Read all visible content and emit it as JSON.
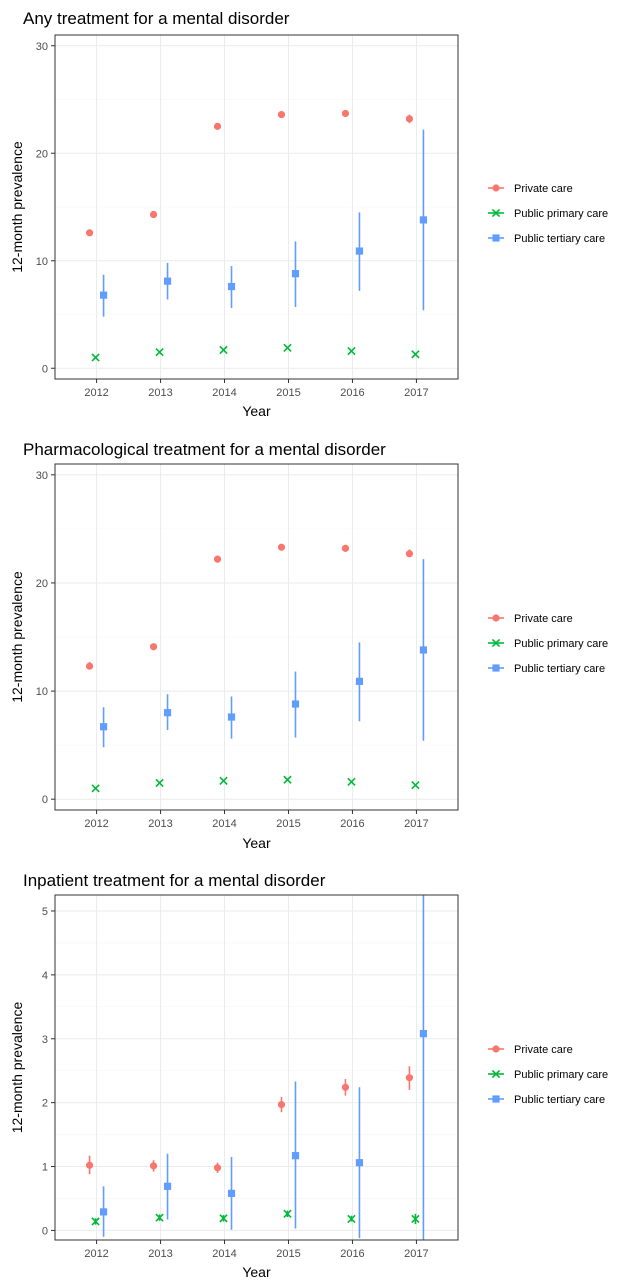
{
  "colors": {
    "private": "#F8766D",
    "primary": "#00BA38",
    "tertiary": "#619CFF"
  },
  "chart_data": [
    {
      "type": "scatter",
      "title": "Any treatment for a mental disorder",
      "xlabel": "Year",
      "ylabel": "12-month prevalence",
      "x": [
        "2012",
        "2013",
        "2014",
        "2015",
        "2016",
        "2017"
      ],
      "ylim": [
        -1,
        31
      ],
      "yticks": [
        0,
        10,
        20,
        30
      ],
      "grid": true,
      "legend_position": "right",
      "series": [
        {
          "name": "Private care",
          "key": "private",
          "marker": "circle",
          "values": [
            12.6,
            14.3,
            22.5,
            23.6,
            23.7,
            23.2
          ],
          "lower": [
            12.3,
            14.1,
            22.3,
            23.4,
            23.5,
            22.8
          ],
          "upper": [
            12.9,
            14.6,
            22.8,
            23.9,
            23.9,
            23.6
          ]
        },
        {
          "name": "Public primary care",
          "key": "primary",
          "marker": "x",
          "values": [
            1.0,
            1.5,
            1.7,
            1.9,
            1.6,
            1.3
          ],
          "lower": [
            0.9,
            1.4,
            1.6,
            1.8,
            1.5,
            1.2
          ],
          "upper": [
            1.1,
            1.6,
            1.8,
            2.0,
            1.7,
            1.4
          ]
        },
        {
          "name": "Public tertiary care",
          "key": "tertiary",
          "marker": "square",
          "values": [
            6.8,
            8.1,
            7.6,
            8.8,
            10.9,
            13.8
          ],
          "lower": [
            4.8,
            6.4,
            5.6,
            5.7,
            7.2,
            5.4
          ],
          "upper": [
            8.7,
            9.8,
            9.5,
            11.8,
            14.5,
            22.2
          ]
        }
      ]
    },
    {
      "type": "scatter",
      "title": "Pharmacological treatment for a mental disorder",
      "xlabel": "Year",
      "ylabel": "12-month prevalence",
      "x": [
        "2012",
        "2013",
        "2014",
        "2015",
        "2016",
        "2017"
      ],
      "ylim": [
        -1,
        31
      ],
      "yticks": [
        0,
        10,
        20,
        30
      ],
      "grid": true,
      "legend_position": "right",
      "series": [
        {
          "name": "Private care",
          "key": "private",
          "marker": "circle",
          "values": [
            12.3,
            14.1,
            22.2,
            23.3,
            23.2,
            22.7
          ],
          "lower": [
            12.0,
            13.9,
            22.0,
            23.1,
            23.0,
            22.4
          ],
          "upper": [
            12.7,
            14.3,
            22.5,
            23.5,
            23.5,
            23.1
          ]
        },
        {
          "name": "Public primary care",
          "key": "primary",
          "marker": "x",
          "values": [
            1.0,
            1.5,
            1.7,
            1.8,
            1.6,
            1.3
          ],
          "lower": [
            0.9,
            1.4,
            1.6,
            1.7,
            1.5,
            1.2
          ],
          "upper": [
            1.1,
            1.6,
            1.8,
            1.9,
            1.7,
            1.4
          ]
        },
        {
          "name": "Public tertiary care",
          "key": "tertiary",
          "marker": "square",
          "values": [
            6.7,
            8.0,
            7.6,
            8.8,
            10.9,
            13.8
          ],
          "lower": [
            4.8,
            6.4,
            5.6,
            5.7,
            7.2,
            5.4
          ],
          "upper": [
            8.5,
            9.7,
            9.5,
            11.8,
            14.5,
            22.2
          ]
        }
      ]
    },
    {
      "type": "scatter",
      "title": "Inpatient treatment for a mental disorder",
      "xlabel": "Year",
      "ylabel": "12-month prevalence",
      "x": [
        "2012",
        "2013",
        "2014",
        "2015",
        "2016",
        "2017"
      ],
      "ylim": [
        -0.15,
        5.25
      ],
      "yticks": [
        0,
        1,
        2,
        3,
        4,
        5
      ],
      "grid": true,
      "legend_position": "right",
      "series": [
        {
          "name": "Private care",
          "key": "private",
          "marker": "circle",
          "values": [
            1.02,
            1.01,
            0.98,
            1.97,
            2.24,
            2.39
          ],
          "lower": [
            0.88,
            0.92,
            0.9,
            1.85,
            2.11,
            2.2
          ],
          "upper": [
            1.17,
            1.1,
            1.06,
            2.09,
            2.37,
            2.57
          ]
        },
        {
          "name": "Public primary care",
          "key": "primary",
          "marker": "x",
          "values": [
            0.14,
            0.2,
            0.19,
            0.26,
            0.18,
            0.18
          ],
          "lower": [
            0.09,
            0.15,
            0.14,
            0.21,
            0.14,
            0.1
          ],
          "upper": [
            0.19,
            0.25,
            0.24,
            0.31,
            0.23,
            0.26
          ]
        },
        {
          "name": "Public tertiary care",
          "key": "tertiary",
          "marker": "square",
          "values": [
            0.29,
            0.69,
            0.58,
            1.17,
            1.06,
            3.08
          ],
          "lower": [
            -0.1,
            0.17,
            0.01,
            0.03,
            -0.12,
            -0.15
          ],
          "upper": [
            0.69,
            1.2,
            1.15,
            2.33,
            2.24,
            5.25
          ]
        }
      ]
    }
  ]
}
